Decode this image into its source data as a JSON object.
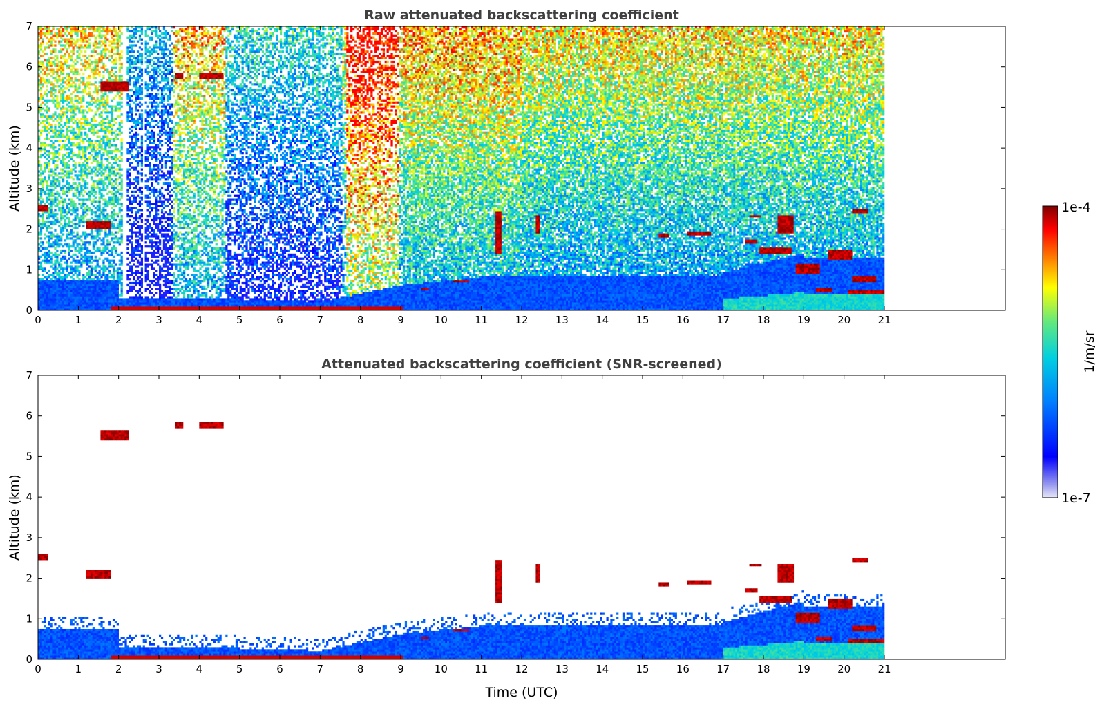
{
  "chart_data": [
    {
      "type": "heatmap",
      "title": "Raw attenuated backscattering coefficient",
      "xlabel": "",
      "ylabel": "Altitude (km)",
      "xlim": [
        0,
        24
      ],
      "ylim": [
        0,
        7
      ],
      "x_ticks": [
        "0",
        "1",
        "2",
        "3",
        "4",
        "5",
        "6",
        "7",
        "8",
        "9",
        "10",
        "11",
        "12",
        "13",
        "14",
        "15",
        "16",
        "17",
        "18",
        "19",
        "20",
        "21"
      ],
      "y_ticks": [
        "0",
        "1",
        "2",
        "3",
        "4",
        "5",
        "6",
        "7"
      ],
      "data_time_range": [
        0,
        21
      ],
      "grid": false
    },
    {
      "type": "heatmap",
      "title": "Attenuated backscattering coefficient (SNR-screened)",
      "xlabel": "Time (UTC)",
      "ylabel": "Altitude (km)",
      "xlim": [
        0,
        24
      ],
      "ylim": [
        0,
        7
      ],
      "x_ticks": [
        "0",
        "1",
        "2",
        "3",
        "4",
        "5",
        "6",
        "7",
        "8",
        "9",
        "10",
        "11",
        "12",
        "13",
        "14",
        "15",
        "16",
        "17",
        "18",
        "19",
        "20",
        "21"
      ],
      "y_ticks": [
        "0",
        "1",
        "2",
        "3",
        "4",
        "5",
        "6",
        "7"
      ],
      "data_time_range": [
        0,
        21
      ],
      "grid": false
    }
  ],
  "colorbar": {
    "label": "1/m/sr",
    "max_label": "1e-4",
    "min_label": "1e-7",
    "scale": "log",
    "colormap": [
      "#e6e6f8",
      "#0000ff",
      "#00aaff",
      "#00e0c0",
      "#ffff00",
      "#ff8000",
      "#ff0000",
      "#800000"
    ]
  }
}
